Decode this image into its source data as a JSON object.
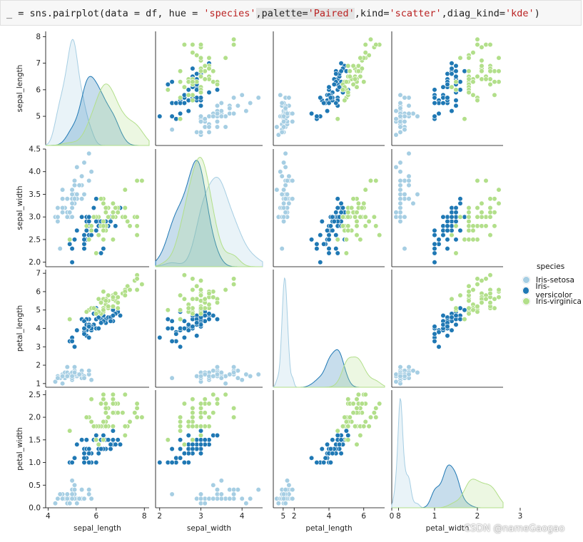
{
  "code": {
    "prompt": "_",
    "text_pre": " = sns.pairplot(data = df, hue = ",
    "hue_str": "'species'",
    "text_mid1": ",palette=",
    "palette_str": "'Paired'",
    "text_mid2": ",kind=",
    "kind_str": "'scatter'",
    "text_mid3": ",diag_kind=",
    "diag_str": "'kde'",
    "text_end": ")"
  },
  "legend": {
    "title": "species",
    "items": [
      {
        "label": "Iris-setosa",
        "color": "#a6cee3"
      },
      {
        "label": "Iris-versicolor",
        "color": "#1f78b4"
      },
      {
        "label": "Iris-virginica",
        "color": "#b2df8a"
      }
    ]
  },
  "watermark": "CSDN @nameGaogao",
  "chart_data": {
    "type": "scatter",
    "variables": [
      "sepal_length",
      "sepal_width",
      "petal_length",
      "petal_width"
    ],
    "ranges": {
      "sepal_length": [
        3.9,
        8.2
      ],
      "sepal_width": [
        1.9,
        4.5
      ],
      "petal_length": [
        0.8,
        7.2
      ],
      "petal_width": [
        0.0,
        2.6
      ]
    },
    "ticks": {
      "sepal_length": [
        4,
        6,
        8
      ],
      "sepal_width": [
        2,
        3,
        4,
        5
      ],
      "petal_length": [
        2,
        4,
        6,
        8
      ],
      "petal_width": [
        0,
        1,
        2,
        3
      ]
    },
    "y_ticks": {
      "sepal_length": [
        5,
        6,
        7,
        8
      ],
      "sepal_width": [
        2.0,
        2.5,
        3.0,
        3.5,
        4.0,
        4.5
      ],
      "petal_length": [
        1,
        2,
        3,
        4,
        5,
        6,
        7
      ],
      "petal_width": [
        0.0,
        0.5,
        1.0,
        1.5,
        2.0,
        2.5
      ]
    },
    "series": [
      {
        "name": "Iris-setosa",
        "color": "#a6cee3",
        "points": [
          [
            5.1,
            3.5,
            1.4,
            0.2
          ],
          [
            4.9,
            3.0,
            1.4,
            0.2
          ],
          [
            4.7,
            3.2,
            1.3,
            0.2
          ],
          [
            4.6,
            3.1,
            1.5,
            0.2
          ],
          [
            5.0,
            3.6,
            1.4,
            0.2
          ],
          [
            5.4,
            3.9,
            1.7,
            0.4
          ],
          [
            4.6,
            3.4,
            1.4,
            0.3
          ],
          [
            5.0,
            3.4,
            1.5,
            0.2
          ],
          [
            4.4,
            2.9,
            1.4,
            0.2
          ],
          [
            4.9,
            3.1,
            1.5,
            0.1
          ],
          [
            5.4,
            3.7,
            1.5,
            0.2
          ],
          [
            4.8,
            3.4,
            1.6,
            0.2
          ],
          [
            4.8,
            3.0,
            1.4,
            0.1
          ],
          [
            4.3,
            3.0,
            1.1,
            0.1
          ],
          [
            5.8,
            4.0,
            1.2,
            0.2
          ],
          [
            5.7,
            4.4,
            1.5,
            0.4
          ],
          [
            5.4,
            3.9,
            1.3,
            0.4
          ],
          [
            5.1,
            3.5,
            1.4,
            0.3
          ],
          [
            5.7,
            3.8,
            1.7,
            0.3
          ],
          [
            5.1,
            3.8,
            1.5,
            0.3
          ],
          [
            5.4,
            3.4,
            1.7,
            0.2
          ],
          [
            5.1,
            3.7,
            1.5,
            0.4
          ],
          [
            4.6,
            3.6,
            1.0,
            0.2
          ],
          [
            5.1,
            3.3,
            1.7,
            0.5
          ],
          [
            4.8,
            3.4,
            1.9,
            0.2
          ],
          [
            5.0,
            3.0,
            1.6,
            0.2
          ],
          [
            5.0,
            3.4,
            1.6,
            0.4
          ],
          [
            5.2,
            3.5,
            1.5,
            0.2
          ],
          [
            5.2,
            3.4,
            1.4,
            0.2
          ],
          [
            4.7,
            3.2,
            1.6,
            0.2
          ],
          [
            4.8,
            3.1,
            1.6,
            0.2
          ],
          [
            5.4,
            3.4,
            1.5,
            0.4
          ],
          [
            5.2,
            4.1,
            1.5,
            0.1
          ],
          [
            5.5,
            4.2,
            1.4,
            0.2
          ],
          [
            4.9,
            3.1,
            1.5,
            0.1
          ],
          [
            5.0,
            3.2,
            1.2,
            0.2
          ],
          [
            5.5,
            3.5,
            1.3,
            0.2
          ],
          [
            4.4,
            3.0,
            1.3,
            0.2
          ],
          [
            5.1,
            3.4,
            1.5,
            0.2
          ],
          [
            5.0,
            3.5,
            1.3,
            0.3
          ],
          [
            4.5,
            2.3,
            1.3,
            0.3
          ],
          [
            4.4,
            3.2,
            1.3,
            0.2
          ],
          [
            5.0,
            3.5,
            1.6,
            0.6
          ],
          [
            5.1,
            3.8,
            1.9,
            0.4
          ],
          [
            4.8,
            3.0,
            1.4,
            0.3
          ],
          [
            5.1,
            3.8,
            1.6,
            0.2
          ],
          [
            4.6,
            3.2,
            1.4,
            0.2
          ],
          [
            5.3,
            3.7,
            1.5,
            0.2
          ],
          [
            5.0,
            3.3,
            1.4,
            0.2
          ]
        ]
      },
      {
        "name": "Iris-versicolor",
        "color": "#1f78b4",
        "points": [
          [
            7.0,
            3.2,
            4.7,
            1.4
          ],
          [
            6.4,
            3.2,
            4.5,
            1.5
          ],
          [
            6.9,
            3.1,
            4.9,
            1.5
          ],
          [
            5.5,
            2.3,
            4.0,
            1.3
          ],
          [
            6.5,
            2.8,
            4.6,
            1.5
          ],
          [
            5.7,
            2.8,
            4.5,
            1.3
          ],
          [
            6.3,
            3.3,
            4.7,
            1.6
          ],
          [
            4.9,
            2.4,
            3.3,
            1.0
          ],
          [
            6.6,
            2.9,
            4.6,
            1.3
          ],
          [
            5.2,
            2.7,
            3.9,
            1.4
          ],
          [
            5.0,
            2.0,
            3.5,
            1.0
          ],
          [
            5.9,
            3.0,
            4.2,
            1.5
          ],
          [
            6.0,
            2.2,
            4.0,
            1.0
          ],
          [
            6.1,
            2.9,
            4.7,
            1.4
          ],
          [
            5.6,
            2.9,
            3.6,
            1.3
          ],
          [
            6.7,
            3.1,
            4.4,
            1.4
          ],
          [
            5.6,
            3.0,
            4.5,
            1.5
          ],
          [
            5.8,
            2.7,
            4.1,
            1.0
          ],
          [
            6.2,
            2.2,
            4.5,
            1.5
          ],
          [
            5.6,
            2.5,
            3.9,
            1.1
          ],
          [
            5.9,
            3.2,
            4.8,
            1.8
          ],
          [
            6.1,
            2.8,
            4.0,
            1.3
          ],
          [
            6.3,
            2.5,
            4.9,
            1.5
          ],
          [
            6.1,
            2.8,
            4.7,
            1.2
          ],
          [
            6.4,
            2.9,
            4.3,
            1.3
          ],
          [
            6.6,
            3.0,
            4.4,
            1.4
          ],
          [
            6.8,
            2.8,
            4.8,
            1.4
          ],
          [
            6.7,
            3.0,
            5.0,
            1.7
          ],
          [
            6.0,
            2.9,
            4.5,
            1.5
          ],
          [
            5.7,
            2.6,
            3.5,
            1.0
          ],
          [
            5.5,
            2.4,
            3.8,
            1.1
          ],
          [
            5.5,
            2.4,
            3.7,
            1.0
          ],
          [
            5.8,
            2.7,
            3.9,
            1.2
          ],
          [
            6.0,
            2.7,
            5.1,
            1.6
          ],
          [
            5.4,
            3.0,
            4.5,
            1.5
          ],
          [
            6.0,
            3.4,
            4.5,
            1.6
          ],
          [
            6.7,
            3.1,
            4.7,
            1.5
          ],
          [
            6.3,
            2.3,
            4.4,
            1.3
          ],
          [
            5.6,
            3.0,
            4.1,
            1.3
          ],
          [
            5.5,
            2.5,
            4.0,
            1.3
          ],
          [
            5.5,
            2.6,
            4.4,
            1.2
          ],
          [
            6.1,
            3.0,
            4.6,
            1.4
          ],
          [
            5.8,
            2.6,
            4.0,
            1.2
          ],
          [
            5.0,
            2.3,
            3.3,
            1.0
          ],
          [
            5.6,
            2.7,
            4.2,
            1.3
          ],
          [
            5.7,
            3.0,
            4.2,
            1.2
          ],
          [
            5.7,
            2.9,
            4.2,
            1.3
          ],
          [
            6.2,
            2.9,
            4.3,
            1.3
          ],
          [
            5.1,
            2.5,
            3.0,
            1.1
          ],
          [
            5.7,
            2.8,
            4.1,
            1.3
          ]
        ]
      },
      {
        "name": "Iris-virginica",
        "color": "#b2df8a",
        "points": [
          [
            6.3,
            3.3,
            6.0,
            2.5
          ],
          [
            5.8,
            2.7,
            5.1,
            1.9
          ],
          [
            7.1,
            3.0,
            5.9,
            2.1
          ],
          [
            6.3,
            2.9,
            5.6,
            1.8
          ],
          [
            6.5,
            3.0,
            5.8,
            2.2
          ],
          [
            7.6,
            3.0,
            6.6,
            2.1
          ],
          [
            4.9,
            2.5,
            4.5,
            1.7
          ],
          [
            7.3,
            2.9,
            6.3,
            1.8
          ],
          [
            6.7,
            2.5,
            5.8,
            1.8
          ],
          [
            7.2,
            3.6,
            6.1,
            2.5
          ],
          [
            6.5,
            3.2,
            5.1,
            2.0
          ],
          [
            6.4,
            2.7,
            5.3,
            1.9
          ],
          [
            6.8,
            3.0,
            5.5,
            2.1
          ],
          [
            5.7,
            2.5,
            5.0,
            2.0
          ],
          [
            5.8,
            2.8,
            5.1,
            2.4
          ],
          [
            6.4,
            3.2,
            5.3,
            2.3
          ],
          [
            6.5,
            3.0,
            5.5,
            1.8
          ],
          [
            7.7,
            3.8,
            6.7,
            2.2
          ],
          [
            7.7,
            2.6,
            6.9,
            2.3
          ],
          [
            6.0,
            2.2,
            5.0,
            1.5
          ],
          [
            6.9,
            3.2,
            5.7,
            2.3
          ],
          [
            5.6,
            2.8,
            4.9,
            2.0
          ],
          [
            7.7,
            2.8,
            6.7,
            2.0
          ],
          [
            6.3,
            2.7,
            4.9,
            1.8
          ],
          [
            6.7,
            3.3,
            5.7,
            2.1
          ],
          [
            7.2,
            3.2,
            6.0,
            1.8
          ],
          [
            6.2,
            2.8,
            4.8,
            1.8
          ],
          [
            6.1,
            3.0,
            4.9,
            1.8
          ],
          [
            6.4,
            2.8,
            5.6,
            2.1
          ],
          [
            7.2,
            3.0,
            5.8,
            1.6
          ],
          [
            7.4,
            2.8,
            6.1,
            1.9
          ],
          [
            7.9,
            3.8,
            6.4,
            2.0
          ],
          [
            6.4,
            2.8,
            5.6,
            2.2
          ],
          [
            6.3,
            2.8,
            5.1,
            1.5
          ],
          [
            6.1,
            2.6,
            5.6,
            1.4
          ],
          [
            7.7,
            3.0,
            6.1,
            2.3
          ],
          [
            6.3,
            3.4,
            5.6,
            2.4
          ],
          [
            6.4,
            3.1,
            5.5,
            1.8
          ],
          [
            6.0,
            3.0,
            4.8,
            1.8
          ],
          [
            6.9,
            3.1,
            5.4,
            2.1
          ],
          [
            6.7,
            3.1,
            5.6,
            2.4
          ],
          [
            6.9,
            3.1,
            5.1,
            2.3
          ],
          [
            5.8,
            2.7,
            5.1,
            1.9
          ],
          [
            6.8,
            3.2,
            5.9,
            2.3
          ],
          [
            6.7,
            3.3,
            5.7,
            2.5
          ],
          [
            6.7,
            3.0,
            5.2,
            2.3
          ],
          [
            6.3,
            2.5,
            5.0,
            1.9
          ],
          [
            6.5,
            3.0,
            5.2,
            2.0
          ],
          [
            6.2,
            3.4,
            5.4,
            2.3
          ],
          [
            5.9,
            3.0,
            5.1,
            1.8
          ]
        ]
      }
    ]
  }
}
